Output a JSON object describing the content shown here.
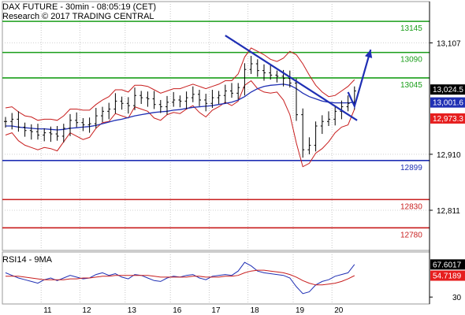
{
  "chart_data": {
    "type": "candlestick",
    "title": "DAX FUTURE - 30min - 08:05:19 (CET)",
    "subtitle": "Research © 2017 TRADING CENTRAL",
    "x_ticks": [
      "11",
      "12",
      "13",
      "16",
      "17",
      "18",
      "19",
      "20"
    ],
    "price_axis": {
      "ylim": [
        12740,
        13180
      ],
      "ticks": [
        13107,
        12910,
        12811
      ],
      "tick_labels": [
        "13,107",
        "12,910",
        "12,811"
      ]
    },
    "levels": [
      {
        "label": "13145",
        "value": 13145,
        "color": "#1a9e1a",
        "role": "resistance"
      },
      {
        "label": "13090",
        "value": 13090,
        "color": "#1a9e1a",
        "role": "resistance"
      },
      {
        "label": "13045",
        "value": 13045,
        "color": "#1a9e1a",
        "role": "resistance"
      },
      {
        "label": "12899",
        "value": 12899,
        "color": "#1f2fb4",
        "role": "pivot"
      },
      {
        "label": "12830",
        "value": 12830,
        "color": "#c81e1e",
        "role": "support"
      },
      {
        "label": "12780",
        "value": 12780,
        "color": "#c81e1e",
        "role": "support"
      }
    ],
    "price_tags": [
      {
        "label": "13,024.5",
        "value": 13024.5,
        "bg": "#000000"
      },
      {
        "label": "13,001.6",
        "value": 13001.6,
        "bg": "#1f2fb4"
      },
      {
        "label": "12,973.3",
        "value": 12973.3,
        "bg": "#e61e1e"
      }
    ],
    "series": [
      {
        "name": "price",
        "color": "#000000",
        "values": [
          12968,
          12972,
          12958,
          12952,
          12950,
          12944,
          12948,
          12946,
          12942,
          12956,
          12970,
          12966,
          12962,
          12964,
          12978,
          12986,
          12990,
          13004,
          13000,
          12996,
          13014,
          13010,
          13008,
          12998,
          12994,
          13002,
          13006,
          13004,
          13010,
          13016,
          13006,
          13000,
          13010,
          13014,
          13022,
          13018,
          13028,
          13060,
          13070,
          13058,
          13054,
          13050,
          13048,
          13044,
          13036,
          12980,
          12918,
          12926,
          12960,
          12968,
          12972,
          12986,
          12994,
          13000,
          13022
        ]
      },
      {
        "name": "upper-band",
        "color": "#c81e1e",
        "values": [
          12992,
          12994,
          12985,
          12978,
          12976,
          12970,
          12972,
          12972,
          12970,
          12978,
          12990,
          12990,
          12988,
          12988,
          12998,
          13006,
          13012,
          13024,
          13024,
          13020,
          13032,
          13032,
          13030,
          13024,
          13018,
          13022,
          13026,
          13026,
          13030,
          13034,
          13030,
          13026,
          13030,
          13034,
          13040,
          13040,
          13052,
          13082,
          13098,
          13092,
          13086,
          13078,
          13074,
          13080,
          13092,
          13086,
          13070,
          13050,
          13032,
          13020,
          13012,
          13014,
          13022,
          13030,
          13042
        ]
      },
      {
        "name": "lower-band",
        "color": "#c81e1e",
        "values": [
          12944,
          12948,
          12934,
          12926,
          12922,
          12918,
          12922,
          12920,
          12916,
          12932,
          12948,
          12942,
          12936,
          12940,
          12956,
          12966,
          12968,
          12982,
          12978,
          12974,
          12994,
          12990,
          12986,
          12974,
          12970,
          12980,
          12984,
          12982,
          12990,
          12996,
          12984,
          12976,
          12988,
          12994,
          13002,
          12996,
          13004,
          13032,
          13040,
          13026,
          13020,
          13018,
          13020,
          13006,
          12980,
          12930,
          12888,
          12894,
          12912,
          12920,
          12932,
          12948,
          12958,
          12962,
          12990
        ]
      },
      {
        "name": "moving-average",
        "color": "#1f2fb4",
        "values": [
          12960,
          12960,
          12958,
          12957,
          12956,
          12955,
          12955,
          12954,
          12953,
          12954,
          12956,
          12957,
          12958,
          12959,
          12961,
          12964,
          12967,
          12970,
          12972,
          12975,
          12978,
          12980,
          12982,
          12984,
          12985,
          12986,
          12988,
          12989,
          12991,
          12993,
          12994,
          12995,
          12996,
          12998,
          13000,
          13002,
          13006,
          13012,
          13020,
          13026,
          13030,
          13032,
          13033,
          13034,
          13032,
          13026,
          13018,
          13012,
          13008,
          13004,
          13002,
          13001,
          13001,
          13001,
          13002
        ]
      }
    ],
    "annotations": [
      {
        "type": "trendline",
        "color": "#1f2fb4",
        "from": {
          "x": 34.0,
          "y": 13120
        },
        "to": {
          "x": 54.4,
          "y": 12970
        }
      },
      {
        "type": "arrow",
        "color": "#1f2fb4",
        "path": [
          {
            "x": 53.0,
            "y": 13020
          },
          {
            "x": 54.0,
            "y": 12995
          },
          {
            "x": 56.5,
            "y": 13095
          }
        ]
      }
    ],
    "rsi_panel": {
      "title": "RSI14 - 9MA",
      "ylim": [
        22,
        82
      ],
      "ticks": [
        30
      ],
      "tick_labels": [
        "30"
      ],
      "tags": [
        {
          "label": "67.6017",
          "value": 67.6,
          "bg": "#000000"
        },
        {
          "label": "54.7189",
          "value": 54.7,
          "bg": "#e61e1e"
        }
      ],
      "series": [
        {
          "name": "rsi",
          "color": "#1f2fb4",
          "values": [
            58,
            55,
            52,
            50,
            48,
            46,
            50,
            52,
            49,
            52,
            55,
            53,
            51,
            52,
            56,
            58,
            55,
            57,
            53,
            51,
            56,
            55,
            52,
            49,
            48,
            52,
            54,
            53,
            55,
            56,
            52,
            50,
            54,
            55,
            56,
            55,
            60,
            70,
            66,
            60,
            58,
            57,
            56,
            55,
            52,
            42,
            34,
            36,
            44,
            48,
            50,
            54,
            56,
            58,
            67.6
          ]
        },
        {
          "name": "ma",
          "color": "#c81e1e",
          "values": [
            54,
            54,
            54,
            53,
            52,
            51,
            50,
            50,
            50,
            50,
            51,
            51,
            52,
            52,
            53,
            54,
            54,
            55,
            55,
            55,
            55,
            55,
            55,
            54,
            53,
            53,
            53,
            53,
            53,
            54,
            54,
            53,
            53,
            53,
            54,
            54,
            55,
            58,
            60,
            61,
            61,
            60,
            59,
            58,
            56,
            53,
            49,
            46,
            44,
            44,
            45,
            46,
            48,
            51,
            54.7
          ]
        }
      ]
    }
  }
}
